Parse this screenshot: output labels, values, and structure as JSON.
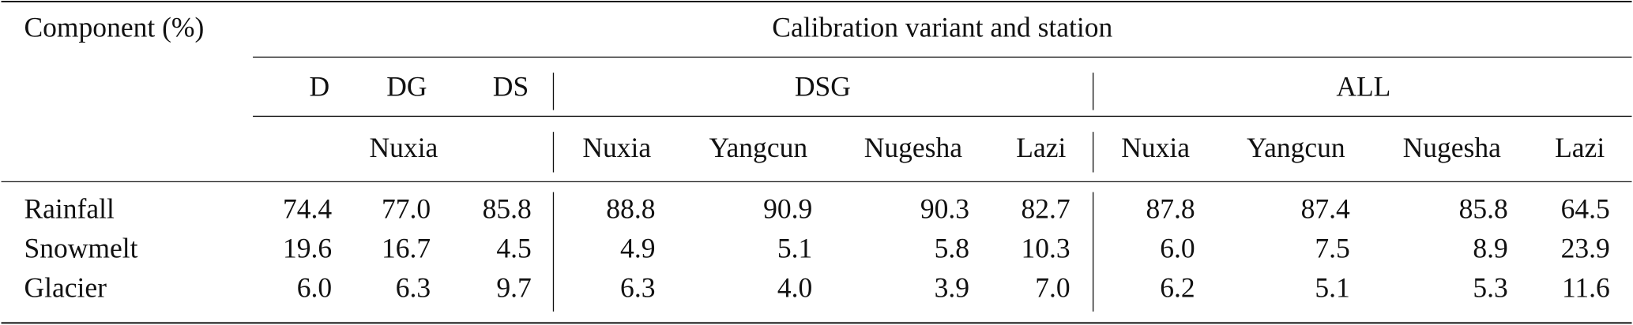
{
  "header": {
    "component": "Component (%)",
    "group": "Calibration variant and station",
    "variants": [
      "D",
      "DG",
      "DS",
      "DSG",
      "ALL"
    ],
    "stations": [
      "Nuxia",
      "Nuxia",
      "Yangcun",
      "Nugesha",
      "Lazi",
      "Nuxia",
      "Yangcun",
      "Nugesha",
      "Lazi"
    ]
  },
  "rows": [
    {
      "label": "Rainfall",
      "values": [
        "74.4",
        "77.0",
        "85.8",
        "88.8",
        "90.9",
        "90.3",
        "82.7",
        "87.8",
        "87.4",
        "85.8",
        "64.5"
      ]
    },
    {
      "label": "Snowmelt",
      "values": [
        "19.6",
        "16.7",
        "4.5",
        "4.9",
        "5.1",
        "5.8",
        "10.3",
        "6.0",
        "7.5",
        "8.9",
        "23.9"
      ]
    },
    {
      "label": "Glacier",
      "values": [
        "6.0",
        "6.3",
        "9.7",
        "6.3",
        "4.0",
        "3.9",
        "7.0",
        "6.2",
        "5.1",
        "5.3",
        "11.6"
      ]
    }
  ]
}
